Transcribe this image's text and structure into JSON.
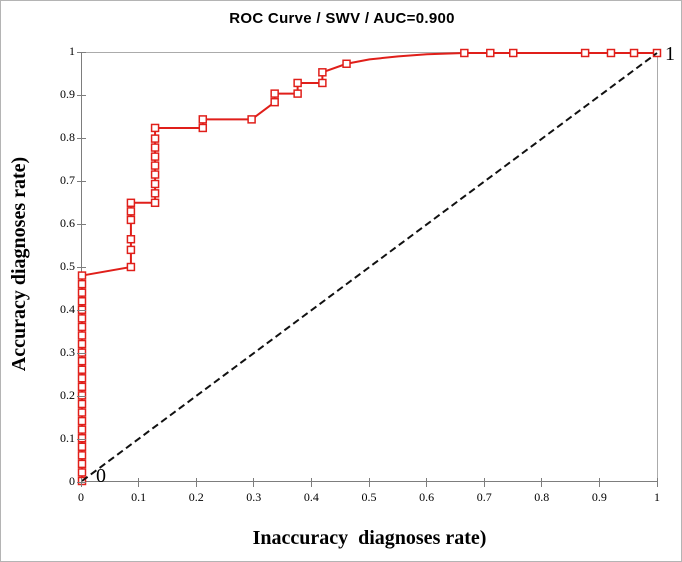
{
  "annotations": {
    "origin_label": "0",
    "top_right_label": "1"
  },
  "colors": {
    "roc_line": "#e01f1a",
    "marker_fill": "#ffffff",
    "diagonal_line": "#111111",
    "axis_line": "#7d7d7d",
    "plot_border": "#ababab"
  },
  "chart_data": {
    "type": "line",
    "title": "ROC Curve / SWV / AUC=0.900",
    "xlabel": "Inaccuracy  diagnoses rate)",
    "ylabel": "Accuracy diagnoses rate)",
    "xlim": [
      0,
      1
    ],
    "ylim": [
      0,
      1
    ],
    "x_tick_labels": [
      "0",
      "0.1",
      "0.2",
      "0.3",
      "0.4",
      "0.5",
      "0.6",
      "0.7",
      "0.8",
      "0.9",
      "1"
    ],
    "y_tick_labels": [
      "0",
      "0.1",
      "0.2",
      "0.3",
      "0.4",
      "0.5",
      "0.6",
      "0.7",
      "0.8",
      "0.9",
      "1"
    ],
    "grid": false,
    "legend": false,
    "auc": 0.9,
    "series": [
      {
        "name": "ROC curve (SWV)",
        "style": "solid",
        "marker": "open-square",
        "points": [
          [
            0,
            0,
            1
          ],
          [
            0,
            0.02,
            1
          ],
          [
            0,
            0.04,
            1
          ],
          [
            0,
            0.06,
            1
          ],
          [
            0,
            0.08,
            1
          ],
          [
            0,
            0.1,
            1
          ],
          [
            0,
            0.12,
            1
          ],
          [
            0,
            0.14,
            1
          ],
          [
            0,
            0.16,
            1
          ],
          [
            0,
            0.18,
            1
          ],
          [
            0,
            0.2,
            1
          ],
          [
            0,
            0.22,
            1
          ],
          [
            0,
            0.24,
            1
          ],
          [
            0,
            0.26,
            1
          ],
          [
            0,
            0.28,
            1
          ],
          [
            0,
            0.3,
            1
          ],
          [
            0,
            0.32,
            1
          ],
          [
            0,
            0.34,
            1
          ],
          [
            0,
            0.36,
            1
          ],
          [
            0,
            0.38,
            1
          ],
          [
            0,
            0.4,
            1
          ],
          [
            0,
            0.42,
            1
          ],
          [
            0,
            0.44,
            1
          ],
          [
            0,
            0.46,
            1
          ],
          [
            0,
            0.48,
            1
          ],
          [
            0.085,
            0.5,
            1
          ],
          [
            0.085,
            0.54,
            1
          ],
          [
            0.085,
            0.565,
            1
          ],
          [
            0.085,
            0.61,
            1
          ],
          [
            0.085,
            0.63,
            1
          ],
          [
            0.085,
            0.65,
            1
          ],
          [
            0.127,
            0.65,
            1
          ],
          [
            0.127,
            0.672,
            1
          ],
          [
            0.127,
            0.694,
            1
          ],
          [
            0.127,
            0.716,
            1
          ],
          [
            0.127,
            0.737,
            1
          ],
          [
            0.127,
            0.758,
            1
          ],
          [
            0.127,
            0.779,
            1
          ],
          [
            0.127,
            0.8,
            1
          ],
          [
            0.127,
            0.825,
            1
          ],
          [
            0.21,
            0.825,
            1
          ],
          [
            0.21,
            0.845,
            1
          ],
          [
            0.295,
            0.845,
            1
          ],
          [
            0.335,
            0.885,
            1
          ],
          [
            0.335,
            0.905,
            1
          ],
          [
            0.375,
            0.905,
            1
          ],
          [
            0.375,
            0.93,
            1
          ],
          [
            0.418,
            0.93,
            1
          ],
          [
            0.418,
            0.955,
            1
          ],
          [
            0.46,
            0.975,
            1
          ],
          [
            0.5,
            0.985,
            0
          ],
          [
            0.55,
            0.992,
            0
          ],
          [
            0.6,
            0.997,
            0
          ],
          [
            0.665,
            1,
            1
          ],
          [
            0.71,
            1,
            1
          ],
          [
            0.75,
            1,
            1
          ],
          [
            0.875,
            1,
            1
          ],
          [
            0.92,
            1,
            1
          ],
          [
            0.96,
            1,
            1
          ],
          [
            1,
            1,
            1
          ]
        ]
      },
      {
        "name": "chance diagonal",
        "style": "dashed",
        "marker": "none",
        "points": [
          [
            0,
            0,
            0
          ],
          [
            1,
            1,
            0
          ]
        ]
      }
    ]
  }
}
